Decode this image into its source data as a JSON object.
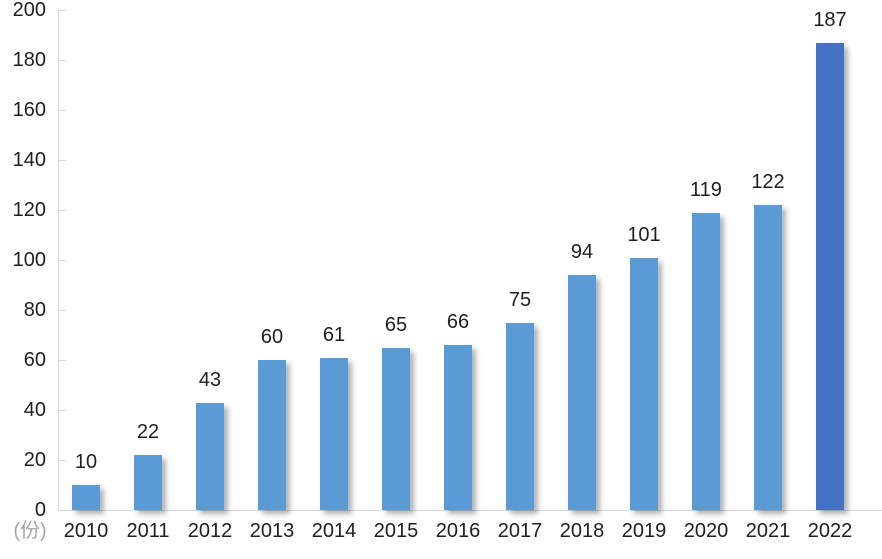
{
  "chart_data": {
    "type": "bar",
    "title": "",
    "xlabel": "",
    "ylabel": "(份)",
    "categories": [
      "2010",
      "2011",
      "2012",
      "2013",
      "2014",
      "2015",
      "2016",
      "2017",
      "2018",
      "2019",
      "2020",
      "2021",
      "2022"
    ],
    "values": [
      10,
      22,
      43,
      60,
      61,
      65,
      66,
      75,
      94,
      101,
      119,
      122,
      187
    ],
    "ylim": [
      0,
      200
    ],
    "y_ticks": [
      0,
      20,
      40,
      60,
      80,
      100,
      120,
      140,
      160,
      180,
      200
    ],
    "grid": false,
    "legend": null,
    "data_labels_shown": true,
    "colors": {
      "bar_default": "#5b9bd5",
      "bar_highlight": "#4472c4",
      "highlight_index": 12,
      "axis": "#d9d9d9",
      "tick_text": "#1f1f1f",
      "unit_text": "#a6a6a6",
      "background": "#ffffff"
    }
  }
}
